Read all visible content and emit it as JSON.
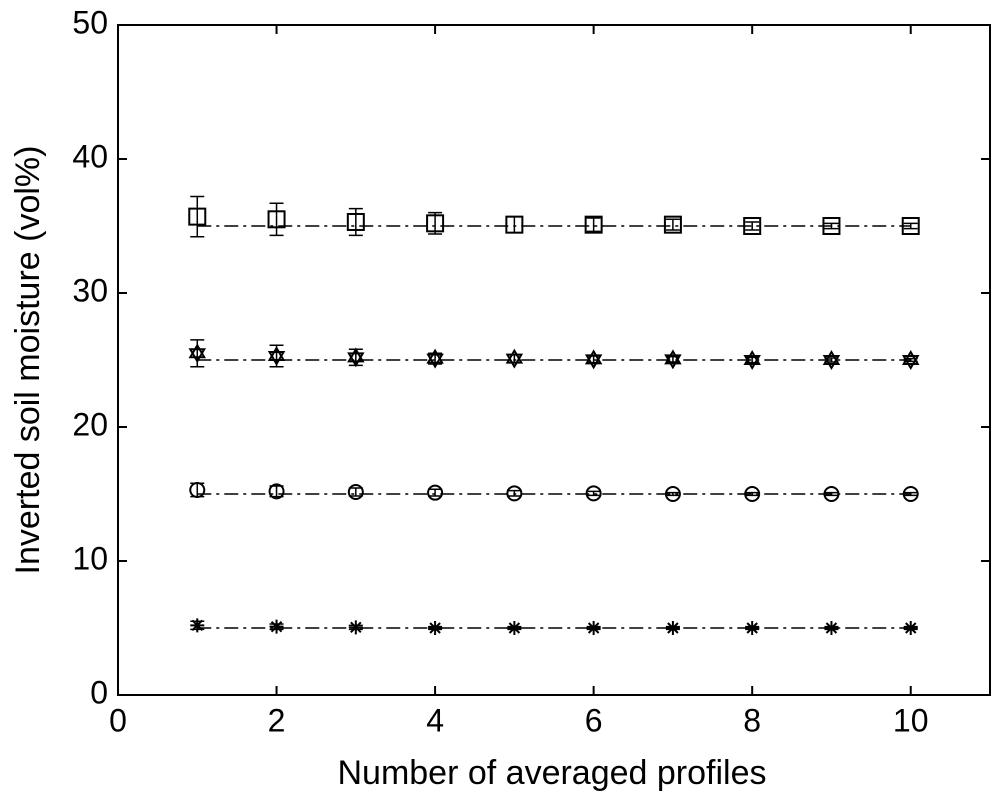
{
  "chart_data": {
    "type": "errorbar",
    "xlabel": "Number of averaged profiles",
    "ylabel": "Inverted soil moisture (vol%)",
    "x": [
      1,
      2,
      3,
      4,
      5,
      6,
      7,
      8,
      9,
      10
    ],
    "series": [
      {
        "marker": "square",
        "color": "#000000",
        "values": [
          35.7,
          35.5,
          35.3,
          35.2,
          35.1,
          35.1,
          35.1,
          35.0,
          35.0,
          35.0
        ],
        "errors": [
          1.5,
          1.2,
          1.0,
          0.8,
          0.6,
          0.5,
          0.4,
          0.3,
          0.2,
          0.2
        ]
      },
      {
        "marker": "hexagram",
        "color": "#000000",
        "values": [
          25.5,
          25.3,
          25.2,
          25.1,
          25.1,
          25.05,
          25.05,
          25.0,
          25.0,
          25.0
        ],
        "errors": [
          1.0,
          0.8,
          0.6,
          0.4,
          0.3,
          0.25,
          0.2,
          0.2,
          0.15,
          0.1
        ]
      },
      {
        "marker": "circle",
        "color": "#000000",
        "values": [
          15.3,
          15.2,
          15.15,
          15.1,
          15.05,
          15.05,
          15.0,
          15.0,
          15.0,
          15.0
        ],
        "errors": [
          0.5,
          0.4,
          0.3,
          0.25,
          0.2,
          0.15,
          0.1,
          0.1,
          0.1,
          0.1
        ]
      },
      {
        "marker": "asterisk",
        "color": "#000000",
        "values": [
          5.2,
          5.1,
          5.05,
          5.0,
          5.0,
          5.0,
          5.0,
          5.0,
          5.0,
          5.0
        ],
        "errors": [
          0.3,
          0.2,
          0.15,
          0.1,
          0.1,
          0.1,
          0.1,
          0.1,
          0.1,
          0.1
        ]
      }
    ],
    "reference_lines": [
      35,
      25,
      15,
      5
    ],
    "reference_style": "dash-dot",
    "xlim": [
      0,
      11
    ],
    "xticks": [
      0,
      2,
      4,
      6,
      8,
      10
    ],
    "ylim": [
      0,
      50
    ],
    "yticks": [
      0,
      10,
      20,
      30,
      40,
      50
    ],
    "grid": false
  }
}
